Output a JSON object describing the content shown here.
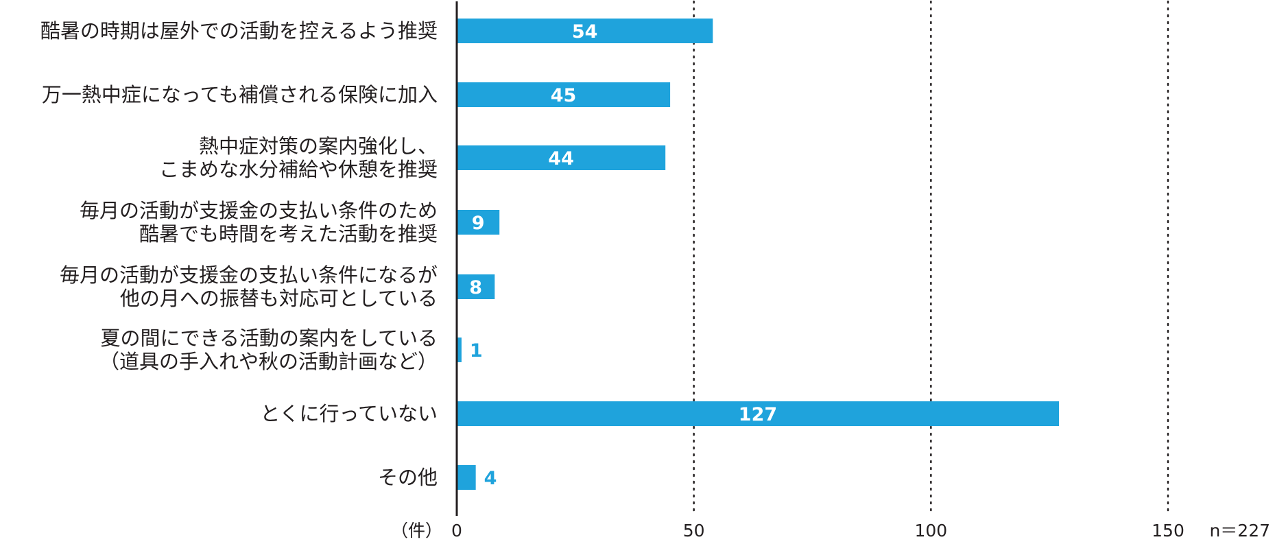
{
  "chart_data": {
    "type": "bar",
    "orientation": "horizontal",
    "categories": [
      [
        "酷暑の時期は屋外での活動を控えるよう推奨"
      ],
      [
        "万一熱中症になっても補償される保険に加入"
      ],
      [
        "熱中症対策の案内強化し、",
        "こまめな水分補給や休憩を推奨"
      ],
      [
        "毎月の活動が支援金の支払い条件のため",
        "酷暑でも時間を考えた活動を推奨"
      ],
      [
        "毎月の活動が支援金の支払い条件になるが",
        "他の月への振替も対応可としている"
      ],
      [
        "夏の間にできる活動の案内をしている",
        "（道具の手入れや秋の活動計画など）"
      ],
      [
        "とくに行っていない"
      ],
      [
        "その他"
      ]
    ],
    "values": [
      54,
      45,
      44,
      9,
      8,
      1,
      127,
      4
    ],
    "xlim": [
      0,
      150
    ],
    "xticks": [
      0,
      50,
      100,
      150
    ],
    "unit_label": "（件）",
    "n_label": "n＝227",
    "grid": "vertical-dotted",
    "bar_color": "#1fa3dc",
    "label_inside_color": "#ffffff",
    "label_outside_color": "#1fa3dc"
  }
}
